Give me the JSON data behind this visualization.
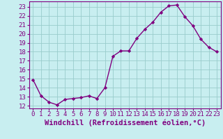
{
  "x": [
    0,
    1,
    2,
    3,
    4,
    5,
    6,
    7,
    8,
    9,
    10,
    11,
    12,
    13,
    14,
    15,
    16,
    17,
    18,
    19,
    20,
    21,
    22,
    23
  ],
  "y": [
    14.9,
    13.1,
    12.4,
    12.1,
    12.7,
    12.8,
    12.9,
    13.1,
    12.8,
    14.0,
    17.5,
    18.1,
    18.1,
    19.5,
    20.5,
    21.3,
    22.4,
    23.1,
    23.2,
    21.9,
    20.9,
    19.4,
    18.5,
    18.0
  ],
  "line_color": "#800080",
  "marker_color": "#800080",
  "background_color": "#c8eef0",
  "grid_color": "#99cccc",
  "xlabel": "Windchill (Refroidissement éolien,°C)",
  "xlabel_color": "#800080",
  "yticks": [
    12,
    13,
    14,
    15,
    16,
    17,
    18,
    19,
    20,
    21,
    22,
    23
  ],
  "xticks": [
    0,
    1,
    2,
    3,
    4,
    5,
    6,
    7,
    8,
    9,
    10,
    11,
    12,
    13,
    14,
    15,
    16,
    17,
    18,
    19,
    20,
    21,
    22,
    23
  ],
  "tick_color": "#800080",
  "tick_labelsize": 6.5,
  "xlabel_fontsize": 7.5
}
